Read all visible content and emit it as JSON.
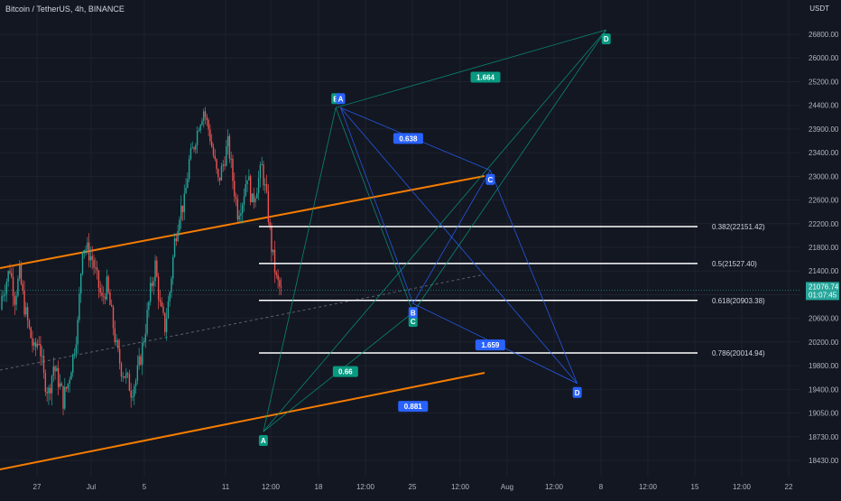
{
  "header": {
    "symbol_title": "Bitcoin / TetherUS, 4h, BINANCE",
    "currency": "USDT"
  },
  "chart_data": {
    "type": "candlestick",
    "ylim": [
      18250,
      27200
    ],
    "y_ticks": [
      "26800.00",
      "26000.00",
      "25200.00",
      "24400.00",
      "23900.00",
      "23400.00",
      "23000.00",
      "22600.00",
      "22200.00",
      "21800.00",
      "21400.00",
      "21000.00",
      "20600.00",
      "20200.00",
      "19800.00",
      "19400.00",
      "19050.00",
      "18730.00",
      "18430.00"
    ],
    "x_ticks": [
      "27",
      "Jul",
      "5",
      "11",
      "12:00",
      "18",
      "12:00",
      "25",
      "12:00",
      "Aug",
      "12:00",
      "8",
      "12:00",
      "15",
      "12:00",
      "22"
    ],
    "last_price": {
      "value": "21076.74",
      "countdown": "01:07:45"
    },
    "colors": {
      "up": "#26a69a",
      "down": "#ef5350",
      "channel": "#f57c00",
      "pattern": "#2962ff",
      "fib": "#ffffff",
      "background": "#131722"
    },
    "close_path": [
      20900,
      21150,
      21450,
      20950,
      21350,
      20800,
      20400,
      20050,
      20250,
      19600,
      19350,
      19800,
      19550,
      19250,
      19500,
      19950,
      20500,
      21850,
      21750,
      21600,
      21250,
      20900,
      21150,
      20650,
      20100,
      19750,
      19600,
      19400,
      19550,
      19950,
      20450,
      21050,
      21500,
      20800,
      20450,
      21050,
      21900,
      22400,
      22550,
      23250,
      23550,
      24000,
      24300,
      23900,
      23350,
      22900,
      23200,
      23600,
      22950,
      22400,
      22600,
      23050,
      22550,
      22850,
      23150,
      22600,
      21800,
      21250,
      21050
    ],
    "fib_levels": [
      {
        "label": "0.382(22151.42)",
        "value": 22151.42
      },
      {
        "label": "0.5(21527.40)",
        "value": 21527.4
      },
      {
        "label": "0.618(20903.38)",
        "value": 20903.38
      },
      {
        "label": "0.786(20014.94)",
        "value": 20014.94
      }
    ],
    "teal_pattern": {
      "points": [
        {
          "label": "A",
          "time": 54,
          "price": 18800
        },
        {
          "label": "B",
          "time": 69,
          "price": 24350
        },
        {
          "label": "C",
          "time": 85,
          "price": 20700
        },
        {
          "label": "D",
          "time": 125,
          "price": 26950
        }
      ],
      "ratios": [
        {
          "text": "1.664",
          "time": 100,
          "price": 25350
        },
        {
          "text": "0.66",
          "time": 71,
          "price": 19700
        }
      ]
    },
    "blue_pattern": {
      "points": [
        {
          "label": "A",
          "time": 70,
          "price": 24350
        },
        {
          "label": "B",
          "time": 85,
          "price": 20850
        },
        {
          "label": "C",
          "time": 101,
          "price": 23100
        },
        {
          "label": "D",
          "time": 119,
          "price": 19500
        }
      ],
      "ratios": [
        {
          "text": "0.638",
          "time": 84,
          "price": 23700
        },
        {
          "text": "1.659",
          "time": 101,
          "price": 20150
        },
        {
          "text": "0.881",
          "time": 85,
          "price": 19150
        }
      ]
    }
  }
}
